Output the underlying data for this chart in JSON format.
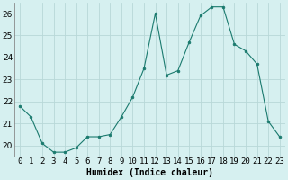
{
  "x": [
    0,
    1,
    2,
    3,
    4,
    5,
    6,
    7,
    8,
    9,
    10,
    11,
    12,
    13,
    14,
    15,
    16,
    17,
    18,
    19,
    20,
    21,
    22,
    23
  ],
  "y": [
    21.8,
    21.3,
    20.1,
    19.7,
    19.7,
    19.9,
    20.4,
    20.4,
    20.5,
    21.3,
    22.2,
    23.5,
    26.0,
    23.2,
    23.4,
    24.7,
    25.9,
    26.3,
    26.3,
    24.6,
    24.3,
    23.7,
    21.1,
    20.4
  ],
  "line_color": "#1a7a6e",
  "marker_color": "#1a7a6e",
  "bg_color": "#d6f0f0",
  "grid_color": "#b8d8d8",
  "xlabel": "Humidex (Indice chaleur)",
  "ylim": [
    19.5,
    26.5
  ],
  "yticks": [
    20,
    21,
    22,
    23,
    24,
    25,
    26
  ],
  "xlabel_fontsize": 7,
  "tick_fontsize": 6.5
}
